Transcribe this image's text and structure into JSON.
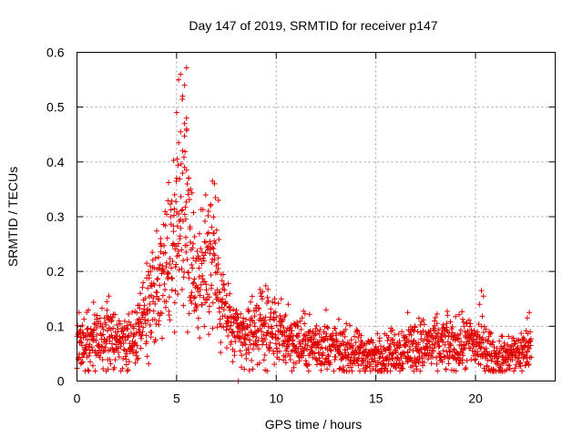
{
  "chart_data": {
    "type": "scatter",
    "title": "Day 147 of 2019, SRMTID for receiver p147",
    "xlabel": "GPS time / hours",
    "ylabel": "SRMTID / TECUs",
    "xlim": [
      0,
      24
    ],
    "ylim": [
      0,
      0.6
    ],
    "xticks": [
      "0",
      "5",
      "10",
      "15",
      "20"
    ],
    "yticks": [
      "0",
      "0.1",
      "0.2",
      "0.3",
      "0.4",
      "0.5",
      "0.6"
    ],
    "grid": true,
    "marker": "plus",
    "color": "#e00000",
    "profile": [
      [
        0,
        0.07
      ],
      [
        0.5,
        0.075
      ],
      [
        1,
        0.07
      ],
      [
        1.5,
        0.08
      ],
      [
        2,
        0.07
      ],
      [
        2.5,
        0.065
      ],
      [
        3,
        0.08
      ],
      [
        3.5,
        0.12
      ],
      [
        4,
        0.16
      ],
      [
        4.5,
        0.22
      ],
      [
        5,
        0.28
      ],
      [
        5.3,
        0.33
      ],
      [
        5.6,
        0.26
      ],
      [
        6,
        0.18
      ],
      [
        6.5,
        0.2
      ],
      [
        6.8,
        0.24
      ],
      [
        7.2,
        0.15
      ],
      [
        7.6,
        0.11
      ],
      [
        8,
        0.08
      ],
      [
        8.5,
        0.08
      ],
      [
        9,
        0.1
      ],
      [
        9.5,
        0.095
      ],
      [
        10,
        0.09
      ],
      [
        10.5,
        0.08
      ],
      [
        11,
        0.07
      ],
      [
        12,
        0.065
      ],
      [
        13,
        0.06
      ],
      [
        14,
        0.05
      ],
      [
        15,
        0.045
      ],
      [
        16,
        0.055
      ],
      [
        17,
        0.065
      ],
      [
        18,
        0.065
      ],
      [
        19,
        0.065
      ],
      [
        20,
        0.07
      ],
      [
        20.5,
        0.06
      ],
      [
        21,
        0.04
      ],
      [
        22,
        0.05
      ],
      [
        22.8,
        0.06
      ]
    ],
    "highlights": [
      {
        "x": 5.1,
        "y": 0.55
      },
      {
        "x": 5.2,
        "y": 0.56
      },
      {
        "x": 5.5,
        "y": 0.572
      },
      {
        "x": 5.4,
        "y": 0.54
      },
      {
        "x": 5.3,
        "y": 0.52
      },
      {
        "x": 5.0,
        "y": 0.49
      },
      {
        "x": 5.5,
        "y": 0.48
      },
      {
        "x": 5.4,
        "y": 0.47
      },
      {
        "x": 5.5,
        "y": 0.46
      },
      {
        "x": 5.2,
        "y": 0.455
      },
      {
        "x": 5.1,
        "y": 0.435
      },
      {
        "x": 5.3,
        "y": 0.42
      },
      {
        "x": 5.4,
        "y": 0.39
      },
      {
        "x": 5.5,
        "y": 0.385
      },
      {
        "x": 5.6,
        "y": 0.37
      },
      {
        "x": 5.0,
        "y": 0.37
      },
      {
        "x": 6.8,
        "y": 0.365
      },
      {
        "x": 6.9,
        "y": 0.36
      },
      {
        "x": 6.7,
        "y": 0.32
      },
      {
        "x": 6.6,
        "y": 0.31
      },
      {
        "x": 7.1,
        "y": 0.33
      },
      {
        "x": 4.9,
        "y": 0.34
      },
      {
        "x": 5.7,
        "y": 0.35
      },
      {
        "x": 4.2,
        "y": 0.26
      },
      {
        "x": 3.5,
        "y": 0.215
      },
      {
        "x": 3.7,
        "y": 0.2
      },
      {
        "x": 20.3,
        "y": 0.165
      },
      {
        "x": 20.4,
        "y": 0.155
      },
      {
        "x": 20.2,
        "y": 0.14
      },
      {
        "x": 22.7,
        "y": 0.125
      },
      {
        "x": 22.6,
        "y": 0.115
      },
      {
        "x": 1.6,
        "y": 0.155
      },
      {
        "x": 1.5,
        "y": 0.145
      },
      {
        "x": 9.3,
        "y": 0.15
      },
      {
        "x": 10.6,
        "y": 0.14
      },
      {
        "x": 16.6,
        "y": 0.125
      },
      {
        "x": 18.6,
        "y": 0.12
      },
      {
        "x": 0.1,
        "y": 0.125
      },
      {
        "x": 12.5,
        "y": 0.13
      },
      {
        "x": 8.1,
        "y": 0.0
      }
    ]
  }
}
